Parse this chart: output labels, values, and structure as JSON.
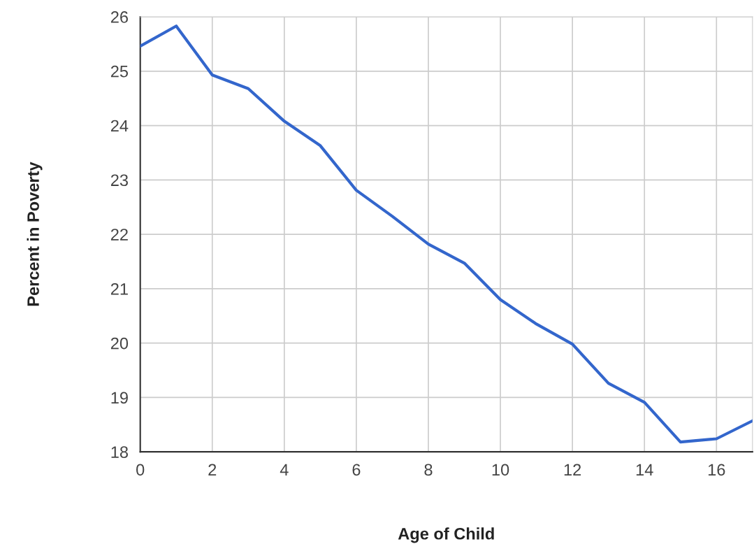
{
  "chart_data": {
    "type": "line",
    "xlabel": "Age of Child",
    "ylabel": "Percent in Poverty",
    "x": [
      0,
      1,
      2,
      3,
      4,
      5,
      6,
      7,
      8,
      9,
      10,
      11,
      12,
      13,
      14,
      15,
      16,
      17
    ],
    "series": [
      {
        "color": "#3366cc",
        "values": [
          25.46,
          25.83,
          24.93,
          24.68,
          24.08,
          23.63,
          22.81,
          22.33,
          21.82,
          21.47,
          20.8,
          20.35,
          19.98,
          19.26,
          18.91,
          18.18,
          18.24,
          18.57
        ]
      }
    ],
    "xlim": [
      0,
      17
    ],
    "xticks": [
      0,
      2,
      4,
      6,
      8,
      10,
      12,
      14,
      16
    ],
    "ylim": [
      18,
      26
    ],
    "yticks": [
      18,
      19,
      20,
      21,
      22,
      23,
      24,
      25,
      26
    ],
    "grid": true,
    "marker": "none",
    "line_style": "solid"
  }
}
